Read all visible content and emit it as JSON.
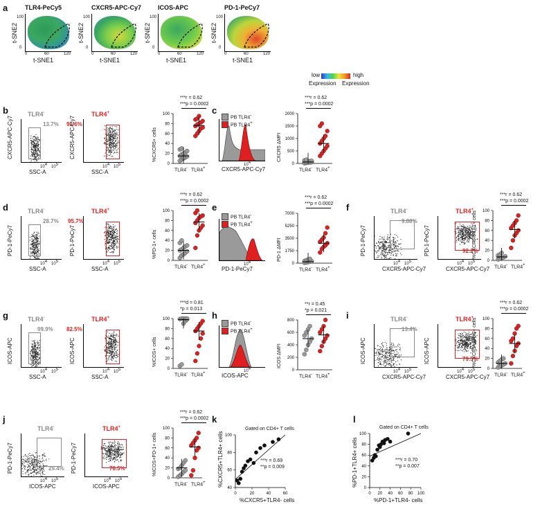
{
  "panel_letters": [
    "a",
    "b",
    "c",
    "d",
    "e",
    "f",
    "g",
    "h",
    "i",
    "j",
    "k",
    "l"
  ],
  "panel_a": {
    "maps": [
      "TLR4-PeCy5",
      "CXCR5-APC-Cy7",
      "ICOS-APC",
      "PD-1-PeCy7"
    ],
    "xlabel": "t-SNE1",
    "ylabel": "t-SNE2",
    "ticks_x": [
      "0",
      "60",
      "120"
    ],
    "ticks_y": [
      "0",
      "100"
    ],
    "legend_low": "low",
    "legend_high": "high",
    "legend_expr": "Expression",
    "legend_expr2": "Expression"
  },
  "colors": {
    "neg": "#888888",
    "pos": "#e02020",
    "neg_fill": "#9a9a9a",
    "pos_fill": "#e02020"
  },
  "populations": {
    "neg": "TLR4",
    "pos": "TLR4"
  },
  "sup": {
    "neg": "-",
    "pos": "+"
  },
  "rows": [
    {
      "id": "b",
      "y_axis": "CXCR5-APC-Cy7",
      "x_axis": "SSC-A",
      "neg_pct": "13.7%",
      "pos_pct": "92.6%",
      "ylabel": "%CXCR5",
      "ylabel_sup": "+",
      "ylabel_tail": " cells",
      "stat1": "***r = 0.62",
      "stat2": "***p = 0.0002",
      "yticks": [
        "0",
        "20",
        "40",
        "60",
        "80",
        "100"
      ]
    },
    {
      "id": "d",
      "y_axis": "PD-1-PeCy7",
      "x_axis": "SSC-A",
      "neg_pct": "28.7%",
      "pos_pct": "95.7%",
      "ylabel": "%PD-1",
      "ylabel_sup": "+",
      "ylabel_tail": " cells",
      "stat1": "***r = 0.62",
      "stat2": "***p = 0.0002",
      "yticks": [
        "0",
        "20",
        "40",
        "60",
        "80",
        "100"
      ]
    },
    {
      "id": "g",
      "y_axis": "ICOS-APC",
      "x_axis": "SSC-A",
      "neg_pct": "99.9%",
      "pos_pct": "82.5%",
      "ylabel": "%ICOS",
      "ylabel_sup": "+",
      "ylabel_tail": " cells",
      "stat1": "***d = 0.81",
      "stat2": "*p = 0.013",
      "yticks": [
        "0",
        "20",
        "40",
        "60",
        "80",
        "100"
      ]
    }
  ],
  "hist_panels": [
    {
      "id": "c",
      "x_axis": "CXCR5-APC-Cy7",
      "leg_neg": "PB TLR4",
      "leg_pos": "PB TLR4",
      "ylabel": "CXCR5 ΔMFI",
      "stat1": "***r = 0.62",
      "stat2": "***p = 0.0002",
      "yticks": [
        "0",
        "500",
        "1000",
        "1500",
        "2000"
      ]
    },
    {
      "id": "e",
      "x_axis": "PD-1-PeCy7",
      "leg_neg": "PB TLR4",
      "leg_pos": "PB TLR4",
      "ylabel": "PD-1 ΔMFI",
      "stat1": "***r = 0.62",
      "stat2": "***p = 0.0002",
      "yticks": [
        "0",
        "1750",
        "3500",
        "5250",
        "7000"
      ]
    },
    {
      "id": "h",
      "x_axis": "ICOS-APC",
      "leg_neg": "PB TLR4",
      "leg_pos": "PB TLR4",
      "ylabel": "ICOS ΔMFI",
      "stat1": "**r = 0.45",
      "stat2": "*p = 0.021",
      "yticks": [
        "0",
        "200",
        "400",
        "600",
        "800"
      ]
    }
  ],
  "dual_panels": [
    {
      "id": "f",
      "y_axis": "PD-1-PeCy7",
      "x_axis": "CXCR5-APC-Cy7",
      "neg_pct": "9.88%",
      "pos_pct": "92.2%",
      "ylabel": "%CXCR5+PD-1+ cells",
      "stat1": "***r = 0.62",
      "stat2": "***p = 0.0002"
    },
    {
      "id": "i",
      "y_axis": "ICOS-APC",
      "x_axis": "CXCR5-APC-Cy7",
      "neg_pct": "13.4%",
      "pos_pct": "79.5%",
      "ylabel": "%CXCR5+ICOS+ cells",
      "stat1": "***r = 0.62",
      "stat2": "***p = 0.0002"
    },
    {
      "id": "j",
      "y_axis": "PD-1-PeCy7",
      "x_axis": "ICOS-APC",
      "neg_pct": "29.4%",
      "pos_pct": "78.5%",
      "ylabel": "%ICOS+PD-1+ cells",
      "stat1": "***r = 0.62",
      "stat2": "***p = 0.0002"
    }
  ],
  "flow_ticks": {
    "x4": "10",
    "x4sup": "4",
    "x5": "10",
    "x5sup": "5"
  },
  "group_labels": [
    "TLR4",
    "TLR4"
  ],
  "chart_data": [
    {
      "type": "scatter",
      "panel": "b",
      "title": "%CXCR5+ cells",
      "categories": [
        "TLR4-",
        "TLR4+"
      ],
      "ylim": [
        0,
        100
      ],
      "series": [
        {
          "name": "TLR4-",
          "values": [
            5,
            8,
            10,
            12,
            14,
            15,
            18,
            20,
            22,
            25,
            28,
            30,
            12
          ]
        },
        {
          "name": "TLR4+",
          "values": [
            55,
            60,
            65,
            70,
            72,
            75,
            78,
            80,
            82,
            85,
            88,
            90,
            95
          ]
        }
      ],
      "median": [
        15,
        76
      ]
    },
    {
      "type": "scatter",
      "panel": "c",
      "title": "CXCR5 ΔMFI",
      "categories": [
        "TLR4-",
        "TLR4+"
      ],
      "ylim": [
        0,
        2000
      ],
      "series": [
        {
          "name": "TLR4-",
          "values": [
            10,
            20,
            30,
            40,
            50,
            60,
            70,
            80,
            90,
            100,
            120,
            150
          ]
        },
        {
          "name": "TLR4+",
          "values": [
            300,
            400,
            500,
            600,
            700,
            800,
            900,
            1000,
            1100,
            1300,
            1500,
            1600
          ]
        }
      ],
      "median": [
        60,
        800
      ]
    },
    {
      "type": "scatter",
      "panel": "d",
      "title": "%PD-1+ cells",
      "categories": [
        "TLR4-",
        "TLR4+"
      ],
      "ylim": [
        0,
        100
      ],
      "series": [
        {
          "name": "TLR4-",
          "values": [
            5,
            10,
            12,
            15,
            18,
            20,
            22,
            25,
            28,
            30,
            35,
            40
          ]
        },
        {
          "name": "TLR4+",
          "values": [
            25,
            50,
            60,
            65,
            70,
            75,
            80,
            85,
            88,
            90,
            95,
            100
          ]
        }
      ],
      "median": [
        20,
        77
      ]
    },
    {
      "type": "scatter",
      "panel": "e",
      "title": "PD-1 ΔMFI",
      "categories": [
        "TLR4-",
        "TLR4+"
      ],
      "ylim": [
        0,
        7000
      ],
      "series": [
        {
          "name": "TLR4-",
          "values": [
            50,
            100,
            150,
            200,
            250,
            300,
            400,
            500,
            600
          ]
        },
        {
          "name": "TLR4+",
          "values": [
            1500,
            2000,
            2300,
            2500,
            2800,
            3000,
            3300,
            3600,
            4200,
            5000
          ]
        }
      ],
      "median": [
        200,
        2800
      ]
    },
    {
      "type": "scatter",
      "panel": "f",
      "title": "%CXCR5+PD-1+ cells",
      "categories": [
        "TLR4-",
        "TLR4+"
      ],
      "ylim": [
        0,
        100
      ],
      "series": [
        {
          "name": "TLR4-",
          "values": [
            2,
            3,
            5,
            6,
            8,
            10,
            12,
            15
          ]
        },
        {
          "name": "TLR4+",
          "values": [
            25,
            40,
            50,
            55,
            60,
            65,
            70,
            75,
            80,
            90
          ]
        }
      ],
      "median": [
        7,
        62
      ]
    },
    {
      "type": "scatter",
      "panel": "g",
      "title": "%ICOS+ cells",
      "categories": [
        "TLR4-",
        "TLR4+"
      ],
      "ylim": [
        0,
        100
      ],
      "series": [
        {
          "name": "TLR4-",
          "values": [
            5,
            8,
            90,
            95,
            98,
            99,
            100,
            100,
            100,
            100
          ]
        },
        {
          "name": "TLR4+",
          "values": [
            15,
            30,
            45,
            60,
            70,
            75,
            80,
            85,
            90,
            95
          ]
        }
      ],
      "median": [
        98,
        75
      ]
    },
    {
      "type": "scatter",
      "panel": "h",
      "title": "ICOS ΔMFI",
      "categories": [
        "TLR4-",
        "TLR4+"
      ],
      "ylim": [
        0,
        800
      ],
      "series": [
        {
          "name": "TLR4-",
          "values": [
            250,
            320,
            400,
            450,
            500,
            550,
            600,
            650,
            700
          ]
        },
        {
          "name": "TLR4+",
          "values": [
            300,
            380,
            450,
            500,
            550,
            600,
            650,
            700,
            800
          ]
        }
      ],
      "median": [
        500,
        560
      ]
    },
    {
      "type": "scatter",
      "panel": "i",
      "title": "%CXCR5+ICOS+ cells",
      "categories": [
        "TLR4-",
        "TLR4+"
      ],
      "ylim": [
        0,
        100
      ],
      "series": [
        {
          "name": "TLR4-",
          "values": [
            2,
            4,
            6,
            8,
            10,
            12,
            15,
            18,
            20
          ]
        },
        {
          "name": "TLR4+",
          "values": [
            10,
            25,
            35,
            45,
            50,
            55,
            60,
            70,
            80,
            85
          ]
        }
      ],
      "median": [
        10,
        50
      ]
    },
    {
      "type": "scatter",
      "panel": "j",
      "title": "%ICOS+PD-1+ cells",
      "categories": [
        "TLR4-",
        "TLR4+"
      ],
      "ylim": [
        0,
        100
      ],
      "series": [
        {
          "name": "TLR4-",
          "values": [
            2,
            5,
            8,
            12,
            15,
            18,
            20,
            25,
            30,
            35
          ]
        },
        {
          "name": "TLR4+",
          "values": [
            5,
            15,
            40,
            55,
            60,
            65,
            70,
            75,
            80,
            90
          ]
        }
      ],
      "median": [
        20,
        62
      ]
    },
    {
      "type": "scatter",
      "panel": "k",
      "title": "Gated on CD4+ T cells",
      "xlabel": "%CXCR5+TLR4- cells",
      "ylabel": "%CXCR5+TLR4+ cells",
      "xlim": [
        0,
        60
      ],
      "ylim": [
        40,
        100
      ],
      "xticks": [
        "0",
        "20",
        "40",
        "60"
      ],
      "yticks": [
        "40",
        "60",
        "80",
        "100"
      ],
      "points": [
        [
          2,
          48
        ],
        [
          4,
          45
        ],
        [
          6,
          50
        ],
        [
          8,
          58
        ],
        [
          10,
          62
        ],
        [
          12,
          65
        ],
        [
          15,
          70
        ],
        [
          18,
          72
        ],
        [
          22,
          68
        ],
        [
          25,
          80
        ],
        [
          30,
          85
        ],
        [
          35,
          88
        ],
        [
          45,
          92
        ],
        [
          52,
          95
        ]
      ],
      "stat1": "***r = 0.69",
      "stat2": "**p = 0.009"
    },
    {
      "type": "scatter",
      "panel": "l",
      "title": "Gated on CD4+ T cells",
      "xlabel": "%PD-1+TLR4- cells",
      "ylabel": "%PD-1+TLR4+ cells",
      "xlim": [
        0,
        100
      ],
      "ylim": [
        0,
        100
      ],
      "xticks": [
        "0",
        "20",
        "40",
        "60",
        "80",
        "100"
      ],
      "yticks": [
        "0",
        "20",
        "40",
        "60",
        "80",
        "100"
      ],
      "points": [
        [
          5,
          50
        ],
        [
          8,
          55
        ],
        [
          10,
          60
        ],
        [
          12,
          58
        ],
        [
          15,
          70
        ],
        [
          18,
          78
        ],
        [
          20,
          75
        ],
        [
          22,
          80
        ],
        [
          25,
          85
        ],
        [
          28,
          82
        ],
        [
          30,
          88
        ],
        [
          35,
          90
        ],
        [
          40,
          85
        ],
        [
          75,
          100
        ]
      ],
      "stat1": "***r = 0.70",
      "stat2": "**p = 0.007"
    }
  ]
}
